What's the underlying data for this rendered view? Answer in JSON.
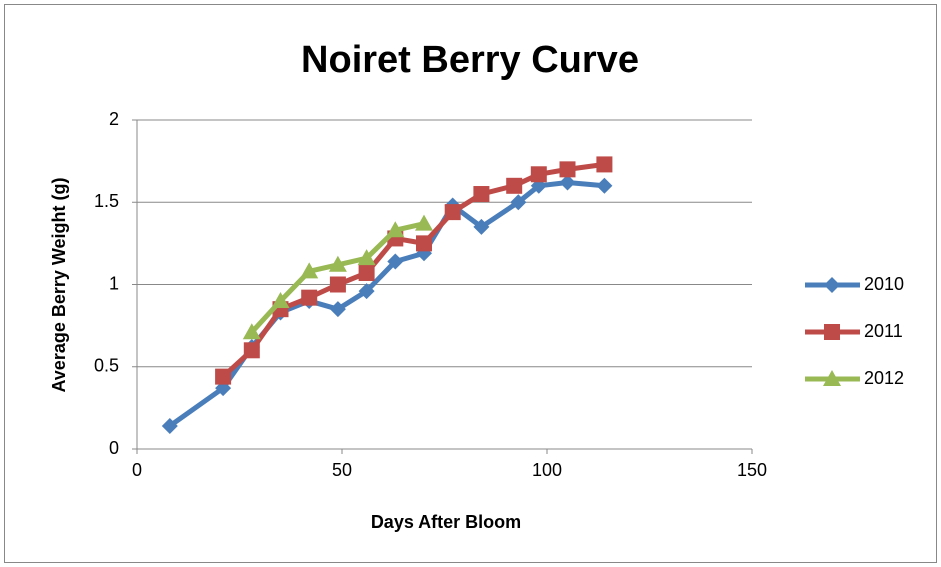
{
  "chart_data": {
    "type": "line",
    "title": "Noiret Berry Curve",
    "x_label": "Days After Bloom",
    "y_label": "Average Berry Weight (g)",
    "xlim": [
      0,
      150
    ],
    "xticks": [
      0,
      50,
      100,
      150
    ],
    "ylim": [
      0,
      2
    ],
    "yticks": [
      0,
      0.5,
      1,
      1.5,
      2
    ],
    "grid": true,
    "legend": "right",
    "series": [
      {
        "name": "2010",
        "color": "#4a7ebb",
        "marker": "diamond",
        "x": [
          8,
          21,
          28,
          35,
          42,
          49,
          56,
          63,
          70,
          77,
          84,
          93,
          98,
          105,
          114
        ],
        "values": [
          0.14,
          0.37,
          0.62,
          0.83,
          0.9,
          0.85,
          0.96,
          1.14,
          1.19,
          1.48,
          1.35,
          1.5,
          1.6,
          1.62,
          1.6
        ]
      },
      {
        "name": "2011",
        "color": "#be4b48",
        "marker": "square",
        "x": [
          21,
          28,
          35,
          42,
          49,
          56,
          63,
          70,
          77,
          84,
          92,
          98,
          105,
          114
        ],
        "values": [
          0.44,
          0.6,
          0.85,
          0.92,
          1.0,
          1.07,
          1.28,
          1.25,
          1.44,
          1.55,
          1.6,
          1.67,
          1.7,
          1.73
        ]
      },
      {
        "name": "2012",
        "color": "#98b954",
        "marker": "triangle",
        "x": [
          28,
          35,
          42,
          49,
          56,
          63,
          70
        ],
        "values": [
          0.71,
          0.9,
          1.08,
          1.12,
          1.16,
          1.33,
          1.37
        ]
      }
    ]
  }
}
